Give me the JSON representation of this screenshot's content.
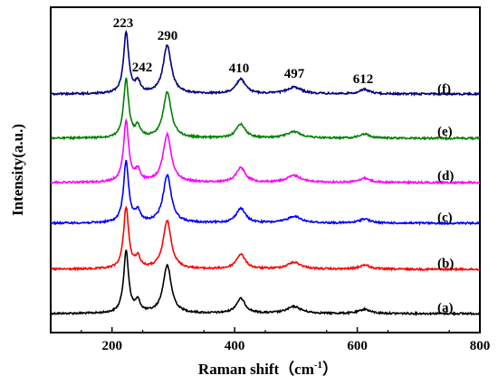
{
  "chart_data": {
    "type": "line",
    "xlabel": "Raman shift（cm",
    "xlabel_sup": "-1",
    "xlabel_close": "）",
    "ylabel": "Intensity(a.u.)",
    "xlim": [
      100,
      800
    ],
    "xticks": [
      200,
      400,
      600,
      800
    ],
    "y_ticks_shown": false,
    "stacked_offsets": true,
    "peak_annotations": [
      "223",
      "242",
      "290",
      "410",
      "497",
      "612"
    ],
    "peaks": [
      {
        "center": 223,
        "height": 1.0,
        "width": 5
      },
      {
        "center": 242,
        "height": 0.18,
        "width": 5
      },
      {
        "center": 290,
        "height": 0.78,
        "width": 8
      },
      {
        "center": 410,
        "height": 0.24,
        "width": 9
      },
      {
        "center": 497,
        "height": 0.11,
        "width": 14
      },
      {
        "center": 612,
        "height": 0.07,
        "width": 10
      }
    ],
    "series": [
      {
        "label": "(a)",
        "color": "#000000",
        "scale": 1.0
      },
      {
        "label": "(b)",
        "color": "#ff0000",
        "scale": 1.0
      },
      {
        "label": "(c)",
        "color": "#0000ff",
        "scale": 1.0
      },
      {
        "label": "(d)",
        "color": "#ff00ff",
        "scale": 1.0
      },
      {
        "label": "(e)",
        "color": "#008000",
        "scale": 0.95
      },
      {
        "label": "(f)",
        "color": "#000080",
        "scale": 1.0
      }
    ]
  }
}
